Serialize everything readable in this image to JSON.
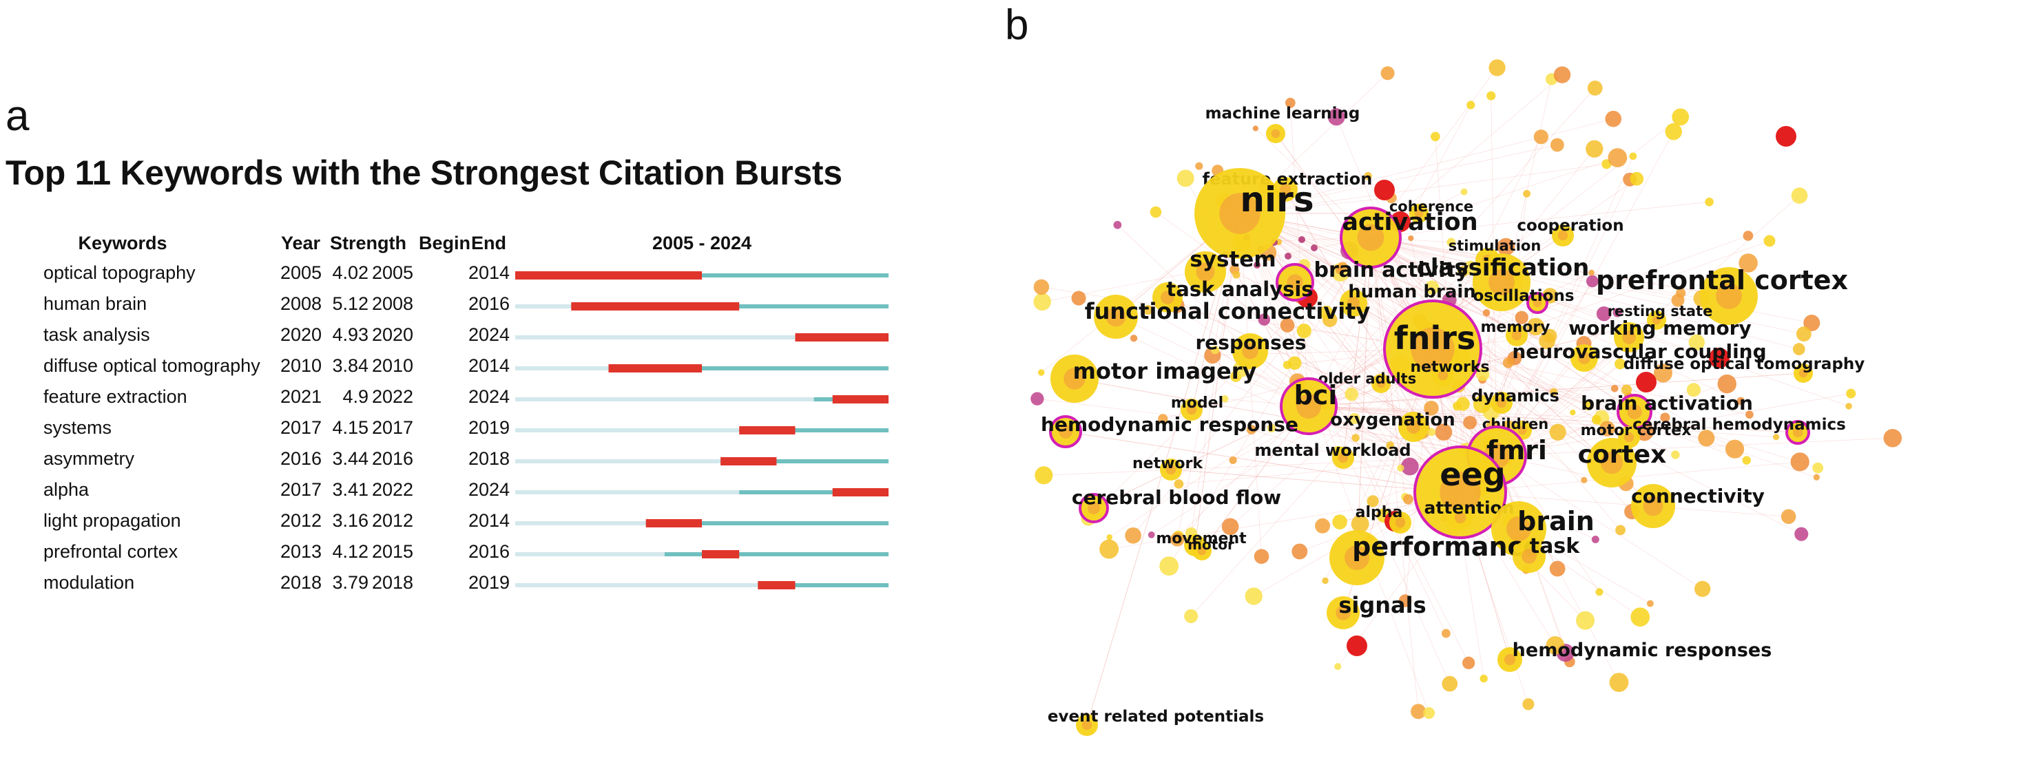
{
  "panel_a": {
    "letter": "a",
    "title": "Top 11 Keywords with the Strongest Citation Bursts"
  },
  "panel_b": {
    "letter": "b"
  },
  "colors": {
    "burst": "#e0352b",
    "active": "#6fc0bf",
    "inactive": "#d3e8ec"
  },
  "chart_data": [
    {
      "type": "table",
      "title": "Top 11 Keywords with the Strongest Citation Bursts",
      "columns": [
        "Keywords",
        "Year",
        "Strength",
        "Begin",
        "End",
        "2005 - 2024"
      ],
      "range_label": "2005 - 2024",
      "range": [
        2005,
        2024
      ],
      "rows": [
        {
          "keyword": "optical topography",
          "year": 2005,
          "strength": "4.02",
          "begin": 2005,
          "end": 2014
        },
        {
          "keyword": "human brain",
          "year": 2008,
          "strength": "5.12",
          "begin": 2008,
          "end": 2016
        },
        {
          "keyword": "task analysis",
          "year": 2020,
          "strength": "4.93",
          "begin": 2020,
          "end": 2024
        },
        {
          "keyword": "diffuse optical tomography",
          "year": 2010,
          "strength": "3.84",
          "begin": 2010,
          "end": 2014
        },
        {
          "keyword": "feature extraction",
          "year": 2021,
          "strength": "4.9",
          "begin": 2022,
          "end": 2024
        },
        {
          "keyword": "systems",
          "year": 2017,
          "strength": "4.15",
          "begin": 2017,
          "end": 2019
        },
        {
          "keyword": "asymmetry",
          "year": 2016,
          "strength": "3.44",
          "begin": 2016,
          "end": 2018
        },
        {
          "keyword": "alpha",
          "year": 2017,
          "strength": "3.41",
          "begin": 2022,
          "end": 2024
        },
        {
          "keyword": "light propagation",
          "year": 2012,
          "strength": "3.16",
          "begin": 2012,
          "end": 2014
        },
        {
          "keyword": "prefrontal cortex",
          "year": 2013,
          "strength": "4.12",
          "begin": 2015,
          "end": 2016
        },
        {
          "keyword": "modulation",
          "year": 2018,
          "strength": "3.79",
          "begin": 2018,
          "end": 2019
        }
      ]
    },
    {
      "type": "scatter",
      "title": "",
      "description": "keyword co-occurrence network",
      "labels": [
        "machine learning",
        "feature extraction",
        "coherence",
        "cooperation",
        "nirs",
        "activation",
        "stimulation",
        "system",
        "brain activity",
        "classification",
        "prefrontal cortex",
        "task analysis",
        "human brain",
        "oscillations",
        "functional connectivity",
        "resting state",
        "memory",
        "working memory",
        "fnirs",
        "responses",
        "neurovascular coupling",
        "diffuse optical tomography",
        "networks",
        "motor imagery",
        "older adults",
        "dynamics",
        "model",
        "bci",
        "brain activation",
        "oxygenation",
        "children",
        "hemodynamic response",
        "motor cortex",
        "cerebral hemodynamics",
        "mental workload",
        "fmri",
        "cortex",
        "network",
        "eeg",
        "cerebral blood flow",
        "connectivity",
        "alpha",
        "attention",
        "brain",
        "movement",
        "motor",
        "performance",
        "task",
        "signals",
        "hemodynamic responses",
        "event related potentials"
      ]
    }
  ]
}
